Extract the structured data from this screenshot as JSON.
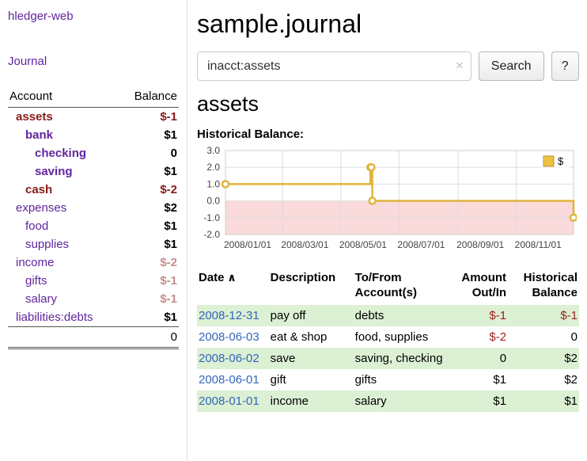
{
  "app": {
    "title": "hledger-web"
  },
  "colors": {
    "link_purple": "#61259e",
    "negative_dark": "#8b1a1a",
    "negative_light": "#c98a8a",
    "table_negative": "#a22020",
    "date_link": "#3366bb",
    "row_green": "#dcf0d4"
  },
  "sidebar": {
    "journal_link": "Journal",
    "columns": {
      "account": "Account",
      "balance": "Balance"
    },
    "accounts": [
      {
        "name": "assets",
        "balance": "$-1",
        "indent": 0,
        "bold": true,
        "name_color": "negative",
        "balance_color": "negative"
      },
      {
        "name": "bank",
        "balance": "$1",
        "indent": 1,
        "bold": true
      },
      {
        "name": "checking",
        "balance": "0",
        "indent": 2,
        "bold": true
      },
      {
        "name": "saving",
        "balance": "$1",
        "indent": 2,
        "bold": true
      },
      {
        "name": "cash",
        "balance": "$-2",
        "indent": 1,
        "bold": true,
        "name_color": "negative",
        "balance_color": "negative"
      },
      {
        "name": "expenses",
        "balance": "$2",
        "indent": 0,
        "bold": false
      },
      {
        "name": "food",
        "balance": "$1",
        "indent": 1,
        "bold": false
      },
      {
        "name": "supplies",
        "balance": "$1",
        "indent": 1,
        "bold": false
      },
      {
        "name": "income",
        "balance": "$-2",
        "indent": 0,
        "bold": false,
        "balance_color": "negative-light"
      },
      {
        "name": "gifts",
        "balance": "$-1",
        "indent": 1,
        "bold": false,
        "balance_color": "negative-light"
      },
      {
        "name": "salary",
        "balance": "$-1",
        "indent": 1,
        "bold": false,
        "balance_color": "negative-light"
      },
      {
        "name": "liabilities:debts",
        "balance": "$1",
        "indent": 0,
        "bold": false
      }
    ],
    "total": "0"
  },
  "main": {
    "title": "sample.journal",
    "search": {
      "value": "inacct:assets",
      "clear_icon": "×",
      "button": "Search",
      "help_button": "?"
    },
    "account_heading": "assets",
    "chart_label": "Historical Balance:"
  },
  "chart_data": {
    "type": "line",
    "title": "Historical Balance",
    "step": true,
    "grid": true,
    "legend_position": "top-right",
    "x_range": [
      "2008-01-01",
      "2008-12-31"
    ],
    "ylim": [
      -2.0,
      3.0
    ],
    "y_ticks": [
      3.0,
      2.0,
      1.0,
      0.0,
      -1.0,
      -2.0
    ],
    "x_ticks": [
      "2008/01/01",
      "2008/03/01",
      "2008/05/01",
      "2008/07/01",
      "2008/09/01",
      "2008/11/01"
    ],
    "legend": [
      {
        "label": "$",
        "color": "#edc240",
        "border": "#b8962e"
      }
    ],
    "negative_region_color": "#fadada",
    "series": [
      {
        "name": "$",
        "color": "#e0b43c",
        "points": [
          {
            "date": "2008-01-01",
            "value": 1
          },
          {
            "date": "2008-06-01",
            "value": 2
          },
          {
            "date": "2008-06-02",
            "value": 2
          },
          {
            "date": "2008-06-03",
            "value": 0
          },
          {
            "date": "2008-12-31",
            "value": -1
          }
        ]
      }
    ]
  },
  "register": {
    "sort_indicator": "∧",
    "columns": [
      {
        "key": "date",
        "label": "Date",
        "align": "left",
        "sortable": true,
        "sorted": "asc"
      },
      {
        "key": "description",
        "label": "Description",
        "align": "left"
      },
      {
        "key": "accounts",
        "label": "To/From Account(s)",
        "align": "left"
      },
      {
        "key": "amount",
        "label": "Amount Out/In",
        "align": "right"
      },
      {
        "key": "balance",
        "label": "Historical Balance",
        "align": "right"
      }
    ],
    "rows": [
      {
        "date": "2008-12-31",
        "description": "pay off",
        "accounts": "debts",
        "amount": "$-1",
        "amount_negative": true,
        "balance": "$-1",
        "balance_negative": true
      },
      {
        "date": "2008-06-03",
        "description": "eat & shop",
        "accounts": "food, supplies",
        "amount": "$-2",
        "amount_negative": true,
        "balance": "0",
        "balance_negative": false
      },
      {
        "date": "2008-06-02",
        "description": "save",
        "accounts": "saving, checking",
        "amount": "0",
        "amount_negative": false,
        "balance": "$2",
        "balance_negative": false
      },
      {
        "date": "2008-06-01",
        "description": "gift",
        "accounts": "gifts",
        "amount": "$1",
        "amount_negative": false,
        "balance": "$2",
        "balance_negative": false
      },
      {
        "date": "2008-01-01",
        "description": "income",
        "accounts": "salary",
        "amount": "$1",
        "amount_negative": false,
        "balance": "$1",
        "balance_negative": false
      }
    ]
  }
}
